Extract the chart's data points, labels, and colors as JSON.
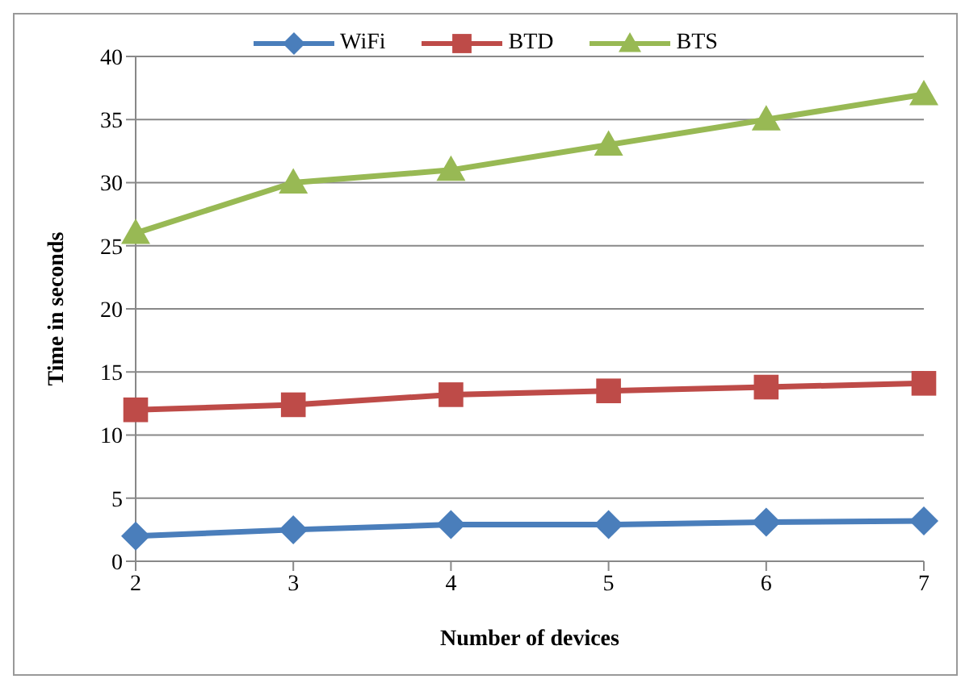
{
  "chart_data": {
    "type": "line",
    "xlabel": "Number of devices",
    "ylabel": "Time in seconds",
    "categories": [
      "2",
      "3",
      "4",
      "5",
      "6",
      "7"
    ],
    "series": [
      {
        "name": "WiFi",
        "color": "#4a7ebb",
        "marker": "diamond",
        "values": [
          2.0,
          2.5,
          2.9,
          2.9,
          3.1,
          3.2
        ]
      },
      {
        "name": "BTD",
        "color": "#be4b48",
        "marker": "square",
        "values": [
          12.0,
          12.4,
          13.2,
          13.5,
          13.8,
          14.1
        ]
      },
      {
        "name": "BTS",
        "color": "#98b954",
        "marker": "triangle",
        "values": [
          26,
          30,
          31,
          33,
          35,
          37
        ]
      }
    ],
    "ylim": [
      0,
      40
    ],
    "yticks": [
      0,
      5,
      10,
      15,
      20,
      25,
      30,
      35,
      40
    ],
    "grid": "y",
    "legend": "top",
    "line_style": "solid"
  }
}
